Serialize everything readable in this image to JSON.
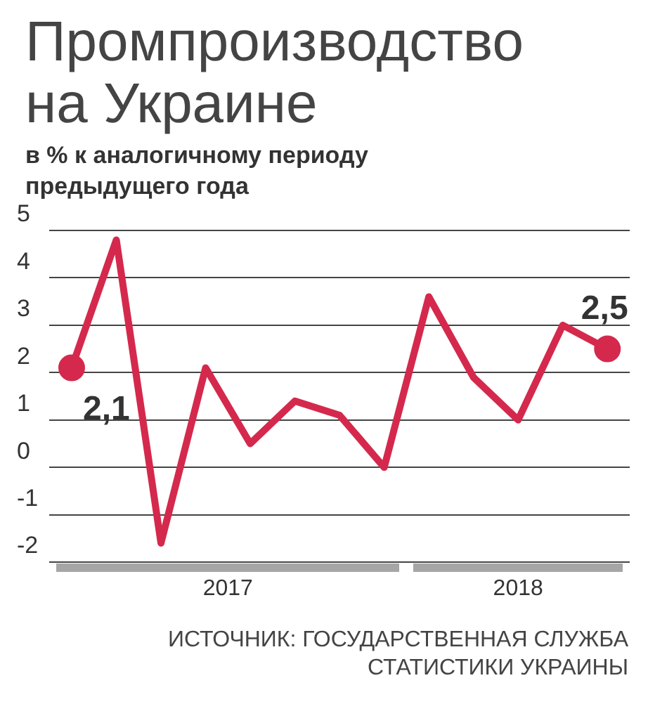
{
  "chart_data": {
    "type": "line",
    "title": "Промпроизводство на Украине",
    "subtitle": "в % к аналогичному периоду предыдущего года",
    "categories": [
      null,
      null,
      null,
      null,
      null,
      null,
      null,
      null,
      null,
      null,
      null,
      null,
      null
    ],
    "series": [
      {
        "color": "#d4294d",
        "values": [
          2.1,
          4.8,
          -1.6,
          2.1,
          0.5,
          1.4,
          1.1,
          0.0,
          3.6,
          1.9,
          1.0,
          3.0,
          2.5
        ],
        "value_labels": [
          "2,1",
          null,
          null,
          null,
          null,
          null,
          null,
          null,
          null,
          null,
          null,
          null,
          "2,5"
        ]
      }
    ],
    "ylim": [
      -2,
      5
    ],
    "yticks": [
      -2,
      -1,
      0,
      1,
      2,
      3,
      4,
      5
    ],
    "grid": "y",
    "legend": false,
    "annotations": [
      "2017",
      "2018",
      "ИСТОЧНИК: ГОСУДАРСТВЕННАЯ СЛУЖБА СТАТИСТИКИ УКРАИНЫ"
    ]
  }
}
